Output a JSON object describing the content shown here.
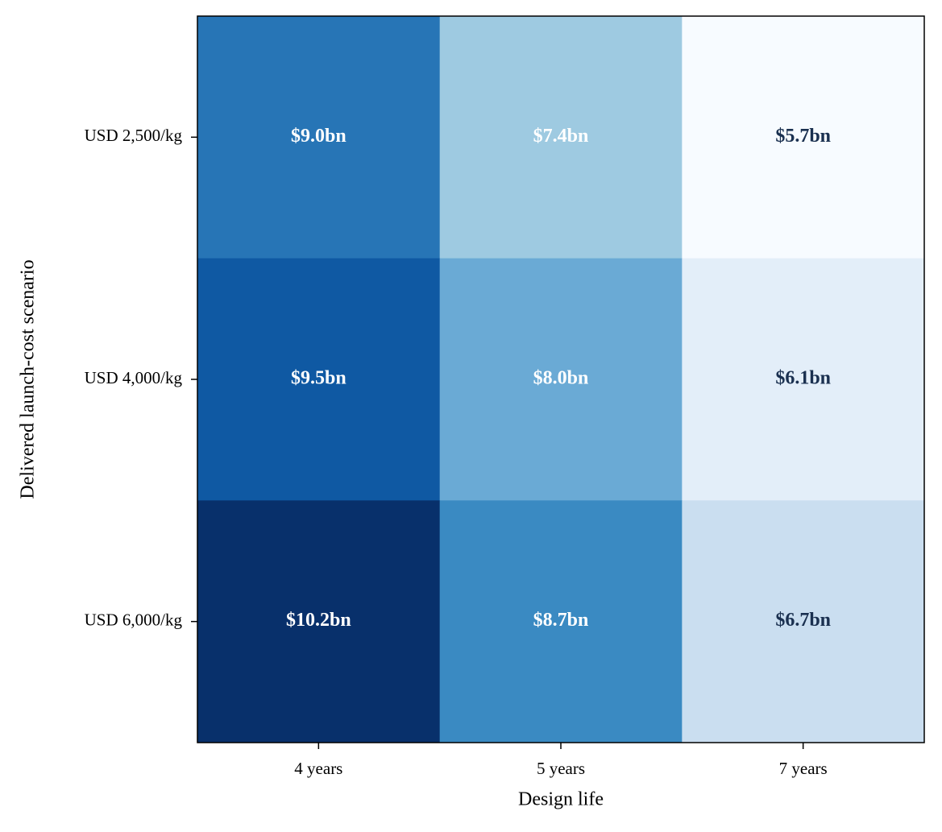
{
  "chart_data": {
    "type": "heatmap",
    "x_label": "Design life",
    "y_label": "Delivered launch-cost scenario",
    "x_categories": [
      "4 years",
      "5 years",
      "7 years"
    ],
    "y_categories": [
      "USD 2,500/kg",
      "USD 4,000/kg",
      "USD 6,000/kg"
    ],
    "values": [
      [
        9.0,
        7.4,
        5.7
      ],
      [
        9.5,
        8.0,
        6.1
      ],
      [
        10.2,
        8.7,
        6.7
      ]
    ],
    "value_labels": [
      [
        "$9.0bn",
        "$7.4bn",
        "$5.7bn"
      ],
      [
        "$9.5bn",
        "$8.0bn",
        "$6.1bn"
      ],
      [
        "$10.2bn",
        "$8.7bn",
        "$6.7bn"
      ]
    ],
    "colors": [
      [
        "#2775b6",
        "#9ecae1",
        "#f7fbff"
      ],
      [
        "#0f59a3",
        "#6aaad5",
        "#e3eef9"
      ],
      [
        "#08306b",
        "#3a8ac2",
        "#cadef0"
      ]
    ],
    "label_colors": [
      [
        "#ffffff",
        "#ffffff",
        "#1a3050"
      ],
      [
        "#ffffff",
        "#ffffff",
        "#1a3050"
      ],
      [
        "#ffffff",
        "#ffffff",
        "#1a3050"
      ]
    ]
  }
}
